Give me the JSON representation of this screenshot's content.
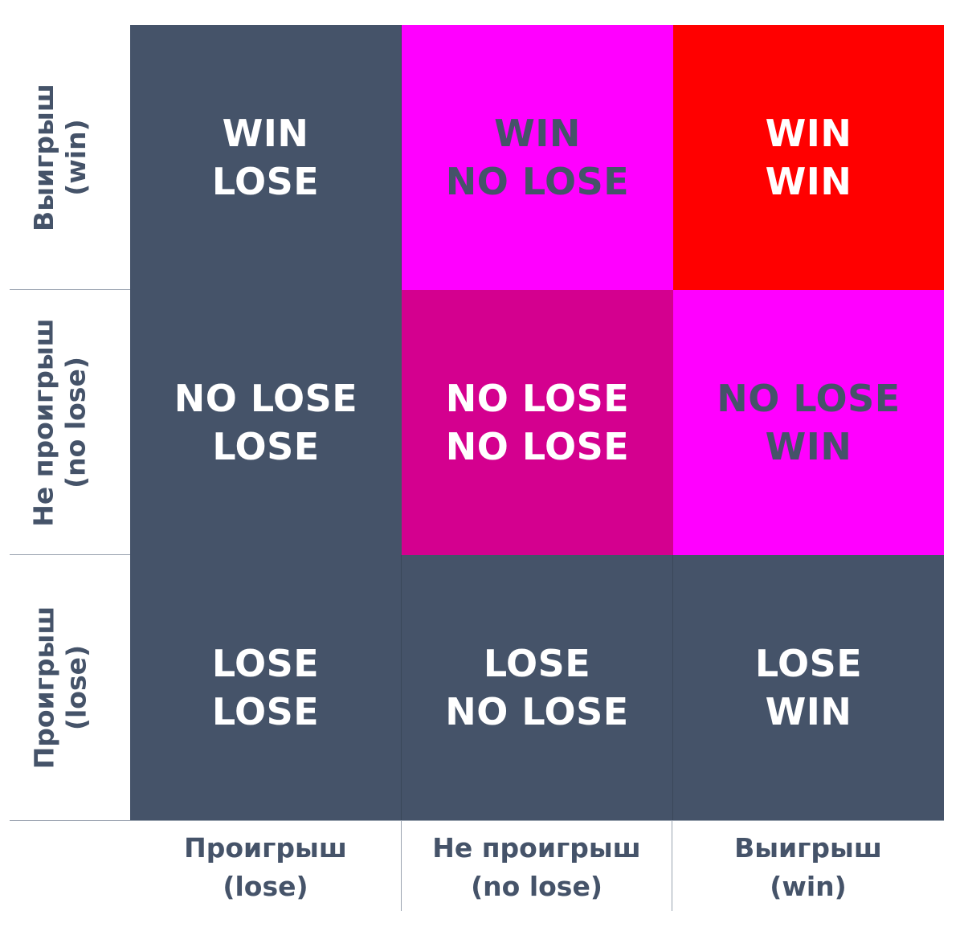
{
  "matrix": {
    "rows": [
      {
        "cells": [
          {
            "line1": "WIN",
            "line2": "LOSE",
            "color": "#455369",
            "text_color": "#ffffff"
          },
          {
            "line1": "WIN",
            "line2": "NO LOSE",
            "color": "#ff00ff",
            "text_color": "#455369"
          },
          {
            "line1": "WIN",
            "line2": "WIN",
            "color": "#ff0000",
            "text_color": "#ffffff"
          }
        ]
      },
      {
        "cells": [
          {
            "line1": "NO LOSE",
            "line2": "LOSE",
            "color": "#455369",
            "text_color": "#ffffff"
          },
          {
            "line1": "NO LOSE",
            "line2": "NO LOSE",
            "color": "#d4008f",
            "text_color": "#ffffff"
          },
          {
            "line1": "NO LOSE",
            "line2": "WIN",
            "color": "#ff00ff",
            "text_color": "#455369"
          }
        ]
      },
      {
        "cells": [
          {
            "line1": "LOSE",
            "line2": "LOSE",
            "color": "#455369",
            "text_color": "#ffffff"
          },
          {
            "line1": "LOSE",
            "line2": "NO LOSE",
            "color": "#455369",
            "text_color": "#ffffff"
          },
          {
            "line1": "LOSE",
            "line2": "WIN",
            "color": "#455369",
            "text_color": "#ffffff"
          }
        ]
      }
    ]
  },
  "y_axis": {
    "labels": [
      {
        "line1": "Выигрыш",
        "line2": "(win)"
      },
      {
        "line1": "Не проигрыш",
        "line2": "(no lose)"
      },
      {
        "line1": "Проигрыш",
        "line2": "(lose)"
      }
    ]
  },
  "x_axis": {
    "labels": [
      {
        "line1": "Проигрыш",
        "line2": "(lose)"
      },
      {
        "line1": "Не проигрыш",
        "line2": "(no lose)"
      },
      {
        "line1": "Выигрыш",
        "line2": "(win)"
      }
    ]
  }
}
